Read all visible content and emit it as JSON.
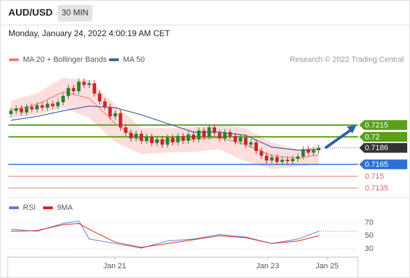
{
  "chart_data": {
    "type": "candlestick",
    "title": "AUD/USD",
    "timeframe": "30 MIN",
    "timestamp": "Monday, January 24, 2022 4:00:19 AM CET",
    "credit": "Research © 2022 Trading Central",
    "xlim": [
      -0.5,
      66.5
    ],
    "xticks": [
      {
        "value": 19.9,
        "label": "Jan 21"
      },
      {
        "value": 49.2,
        "label": "Jan 23"
      },
      {
        "value": 60.6,
        "label": "Jan 25"
      }
    ],
    "ylim": [
      0.7124,
      0.7312
    ],
    "candles": {
      "up_color": "#2e7d32",
      "down_color": "#c62828",
      "open": [
        0.7229,
        0.7233,
        0.7236,
        0.7231,
        0.7238,
        0.7235,
        0.724,
        0.7237,
        0.7242,
        0.7239,
        0.7244,
        0.7252,
        0.7262,
        0.7258,
        0.727,
        0.7266,
        0.7268,
        0.7255,
        0.7245,
        0.7238,
        0.7226,
        0.723,
        0.7212,
        0.7205,
        0.7198,
        0.7204,
        0.7195,
        0.72,
        0.7192,
        0.7197,
        0.719,
        0.7199,
        0.7193,
        0.7201,
        0.7195,
        0.7203,
        0.7197,
        0.7208,
        0.72,
        0.7212,
        0.7205,
        0.7198,
        0.7206,
        0.7201,
        0.7194,
        0.7199,
        0.719,
        0.7193,
        0.7182,
        0.7176,
        0.717,
        0.7174,
        0.7168,
        0.7171,
        0.7169,
        0.7172,
        0.7175,
        0.7184,
        0.718,
        0.7183
      ],
      "high": [
        0.7237,
        0.724,
        0.724,
        0.7242,
        0.7242,
        0.7244,
        0.7244,
        0.7246,
        0.7246,
        0.7248,
        0.7256,
        0.7266,
        0.7266,
        0.7274,
        0.7274,
        0.7272,
        0.7272,
        0.7259,
        0.7249,
        0.7242,
        0.7234,
        0.7234,
        0.7216,
        0.7209,
        0.7208,
        0.7208,
        0.7204,
        0.7204,
        0.7201,
        0.7201,
        0.7203,
        0.7203,
        0.7205,
        0.7205,
        0.7207,
        0.7207,
        0.7212,
        0.7212,
        0.7216,
        0.7216,
        0.7209,
        0.721,
        0.721,
        0.7205,
        0.7203,
        0.7203,
        0.7197,
        0.7197,
        0.7186,
        0.718,
        0.7178,
        0.7178,
        0.7175,
        0.7175,
        0.7176,
        0.7179,
        0.7188,
        0.7188,
        0.7187,
        0.719
      ],
      "low": [
        0.7225,
        0.7229,
        0.7227,
        0.7227,
        0.7231,
        0.7231,
        0.7233,
        0.7233,
        0.7235,
        0.7235,
        0.724,
        0.7248,
        0.7254,
        0.7254,
        0.7262,
        0.7262,
        0.7251,
        0.7241,
        0.7234,
        0.7222,
        0.7222,
        0.7208,
        0.7201,
        0.7194,
        0.7194,
        0.7191,
        0.7191,
        0.7188,
        0.7188,
        0.7186,
        0.7186,
        0.7189,
        0.7189,
        0.7191,
        0.7191,
        0.7193,
        0.7193,
        0.7196,
        0.7196,
        0.7201,
        0.7194,
        0.7194,
        0.7197,
        0.719,
        0.719,
        0.7186,
        0.7186,
        0.7178,
        0.7172,
        0.7166,
        0.7166,
        0.7164,
        0.7164,
        0.7165,
        0.7165,
        0.7168,
        0.7171,
        0.7176,
        0.7176,
        0.7179
      ],
      "close": [
        0.7233,
        0.7236,
        0.7231,
        0.7238,
        0.7235,
        0.724,
        0.7237,
        0.7242,
        0.7239,
        0.7244,
        0.7252,
        0.7262,
        0.7258,
        0.727,
        0.7266,
        0.7268,
        0.7255,
        0.7245,
        0.7238,
        0.7226,
        0.723,
        0.7212,
        0.7205,
        0.7198,
        0.7204,
        0.7195,
        0.72,
        0.7192,
        0.7197,
        0.719,
        0.7199,
        0.7193,
        0.7201,
        0.7195,
        0.7203,
        0.7197,
        0.7208,
        0.72,
        0.7212,
        0.7205,
        0.7198,
        0.7206,
        0.7201,
        0.7194,
        0.7199,
        0.719,
        0.7193,
        0.7182,
        0.7176,
        0.717,
        0.7174,
        0.7168,
        0.7171,
        0.7169,
        0.7172,
        0.7175,
        0.7184,
        0.718,
        0.7183,
        0.7186
      ]
    },
    "overlays": [
      {
        "name": "MA 20 + Bollinger Bands",
        "color": "#f07f7f",
        "band_color": "#fbd3d3",
        "x": [
          0,
          5,
          10,
          15,
          20,
          25,
          30,
          35,
          40,
          45,
          50,
          55,
          59
        ],
        "values": [
          0.7234,
          0.7241,
          0.7257,
          0.7249,
          0.7217,
          0.7195,
          0.7195,
          0.7197,
          0.7199,
          0.719,
          0.7176,
          0.7173,
          0.7177
        ],
        "upper": [
          0.7246,
          0.7255,
          0.7275,
          0.7272,
          0.7241,
          0.7211,
          0.7211,
          0.7212,
          0.7215,
          0.7211,
          0.7193,
          0.7184,
          0.7189
        ],
        "lower": [
          0.7224,
          0.7228,
          0.7237,
          0.7224,
          0.7193,
          0.7178,
          0.718,
          0.7181,
          0.7184,
          0.7169,
          0.7159,
          0.7162,
          0.7166
        ]
      },
      {
        "name": "MA 50",
        "color": "#3f5ea6",
        "x": [
          0,
          5,
          10,
          15,
          20,
          25,
          30,
          35,
          40,
          45,
          50,
          55,
          59
        ],
        "values": [
          0.7221,
          0.7226,
          0.7233,
          0.7239,
          0.7237,
          0.7228,
          0.7217,
          0.7206,
          0.7206,
          0.7202,
          0.7187,
          0.7183,
          0.7184
        ]
      }
    ],
    "levels": [
      0.7215,
      0.72,
      0.7186,
      0.7165,
      0.715,
      0.7135
    ],
    "level_colors": [
      "#58a018",
      "#58a018",
      "#333333",
      "#2f6fd6",
      "#e06060",
      "#e06060"
    ],
    "level_boxed": [
      true,
      true,
      true,
      true,
      false,
      false
    ],
    "level_dashed": [
      false,
      false,
      true,
      false,
      false,
      false
    ],
    "rsi": {
      "ylim": [
        17,
        105
      ],
      "yticks": [
        70,
        50,
        30
      ],
      "x": [
        0,
        5,
        10,
        13,
        15,
        20,
        25,
        30,
        35,
        40,
        45,
        50,
        55,
        59
      ],
      "series": [
        {
          "name": "RSI",
          "color": "#5b7fd6",
          "values": [
            60,
            57,
            69,
            73,
            45,
            38,
            31,
            42,
            45,
            52,
            48,
            38,
            45,
            57
          ]
        },
        {
          "name": "9MA",
          "color": "#e02020",
          "values": [
            57,
            58,
            67,
            69,
            60,
            40,
            32,
            38,
            44,
            50,
            47,
            38,
            42,
            50
          ]
        }
      ]
    }
  }
}
